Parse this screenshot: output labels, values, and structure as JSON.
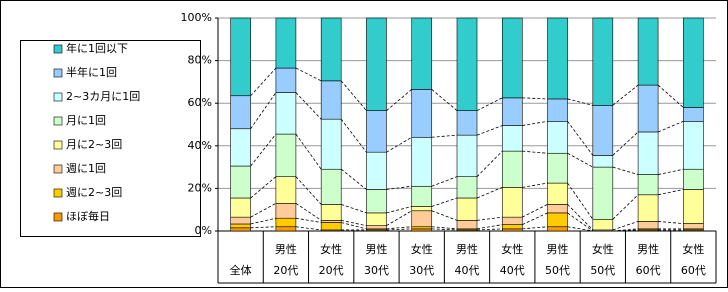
{
  "chart_data": {
    "type": "stacked_bar_100",
    "category_groups": [
      null,
      "男性",
      "女性",
      "男性",
      "女性",
      "男性",
      "女性",
      "男性",
      "女性",
      "男性",
      "女性"
    ],
    "categories": [
      "全体",
      "20代",
      "20代",
      "30代",
      "30代",
      "40代",
      "40代",
      "50代",
      "50代",
      "60代",
      "60代"
    ],
    "series": [
      {
        "name": "ほぼ毎日",
        "color": "#ff9900",
        "values": [
          1.5,
          2,
          0.5,
          0.5,
          1,
          0.5,
          1,
          2,
          0,
          0.5,
          0.5
        ]
      },
      {
        "name": "週に2~3回",
        "color": "#ffcc00",
        "values": [
          1.8,
          4,
          3.5,
          0.5,
          1,
          0.5,
          2,
          6.5,
          0,
          0.5,
          0.5
        ]
      },
      {
        "name": "週に1回",
        "color": "#ffcc99",
        "values": [
          3.2,
          7,
          1,
          1.5,
          7.5,
          4,
          3.5,
          4,
          0.5,
          3.5,
          2.5
        ]
      },
      {
        "name": "月に2~3回",
        "color": "#ffff99",
        "values": [
          9,
          12.5,
          7.5,
          6,
          2,
          10.5,
          14,
          10,
          5,
          12.5,
          16
        ]
      },
      {
        "name": "月に1回",
        "color": "#ccffcc",
        "values": [
          15,
          20,
          16.5,
          11,
          9.5,
          10,
          17,
          14,
          24.5,
          9.5,
          9.5
        ]
      },
      {
        "name": "2~3カ月に1回",
        "color": "#ccffff",
        "values": [
          17.5,
          19.5,
          23.5,
          17.5,
          23,
          19.5,
          12,
          15,
          5.5,
          20,
          22.5
        ]
      },
      {
        "name": "半年に1回",
        "color": "#99ccff",
        "values": [
          15.5,
          11.5,
          18,
          19.5,
          22.5,
          11.5,
          13,
          10.5,
          23.5,
          22,
          6.5
        ]
      },
      {
        "name": "年に1回以下",
        "color": "#33cccc",
        "values": [
          36.5,
          23.5,
          29.5,
          43.5,
          33.5,
          43.5,
          37.5,
          38,
          41,
          31.5,
          42
        ]
      }
    ],
    "ylim": [
      0,
      100
    ],
    "yticks": [
      {
        "value": 0,
        "label": "0%"
      },
      {
        "value": 20,
        "label": "20%"
      },
      {
        "value": 40,
        "label": "40%"
      },
      {
        "value": 60,
        "label": "60%"
      },
      {
        "value": 80,
        "label": "80%"
      },
      {
        "value": 100,
        "label": "100%"
      }
    ],
    "grid": true
  }
}
